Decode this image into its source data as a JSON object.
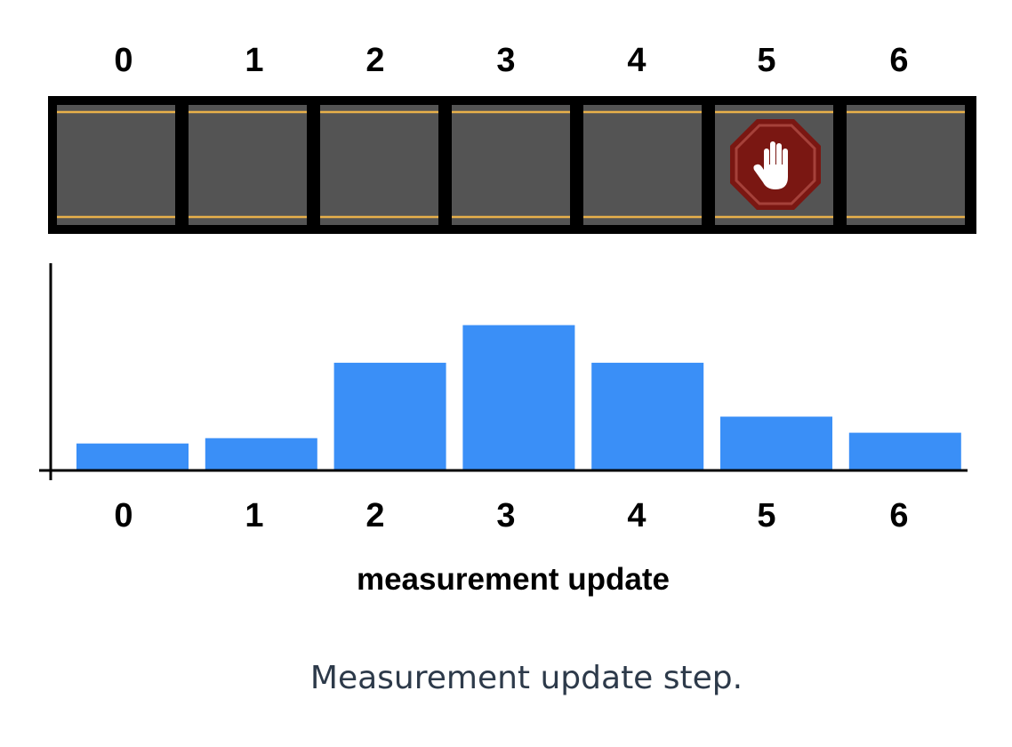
{
  "grid": {
    "cell_indices": [
      "0",
      "1",
      "2",
      "3",
      "4",
      "5",
      "6"
    ],
    "stop_sign_cell": 5,
    "road_color": "#545454",
    "border_color": "#000000",
    "lane_line_color": "#e8b04a",
    "stop_sign_color": "#7a1712",
    "stop_sign_icon": "stop-hand-icon"
  },
  "chart_data": {
    "type": "bar",
    "categories": [
      "0",
      "1",
      "2",
      "3",
      "4",
      "5",
      "6"
    ],
    "values": [
      0.05,
      0.06,
      0.2,
      0.27,
      0.2,
      0.1,
      0.07
    ],
    "title": "",
    "xlabel": "measurement update",
    "ylabel": "",
    "ylim": [
      0,
      0.38
    ],
    "grid": false,
    "bar_color": "#3a8ff7"
  },
  "caption": "Measurement update step."
}
